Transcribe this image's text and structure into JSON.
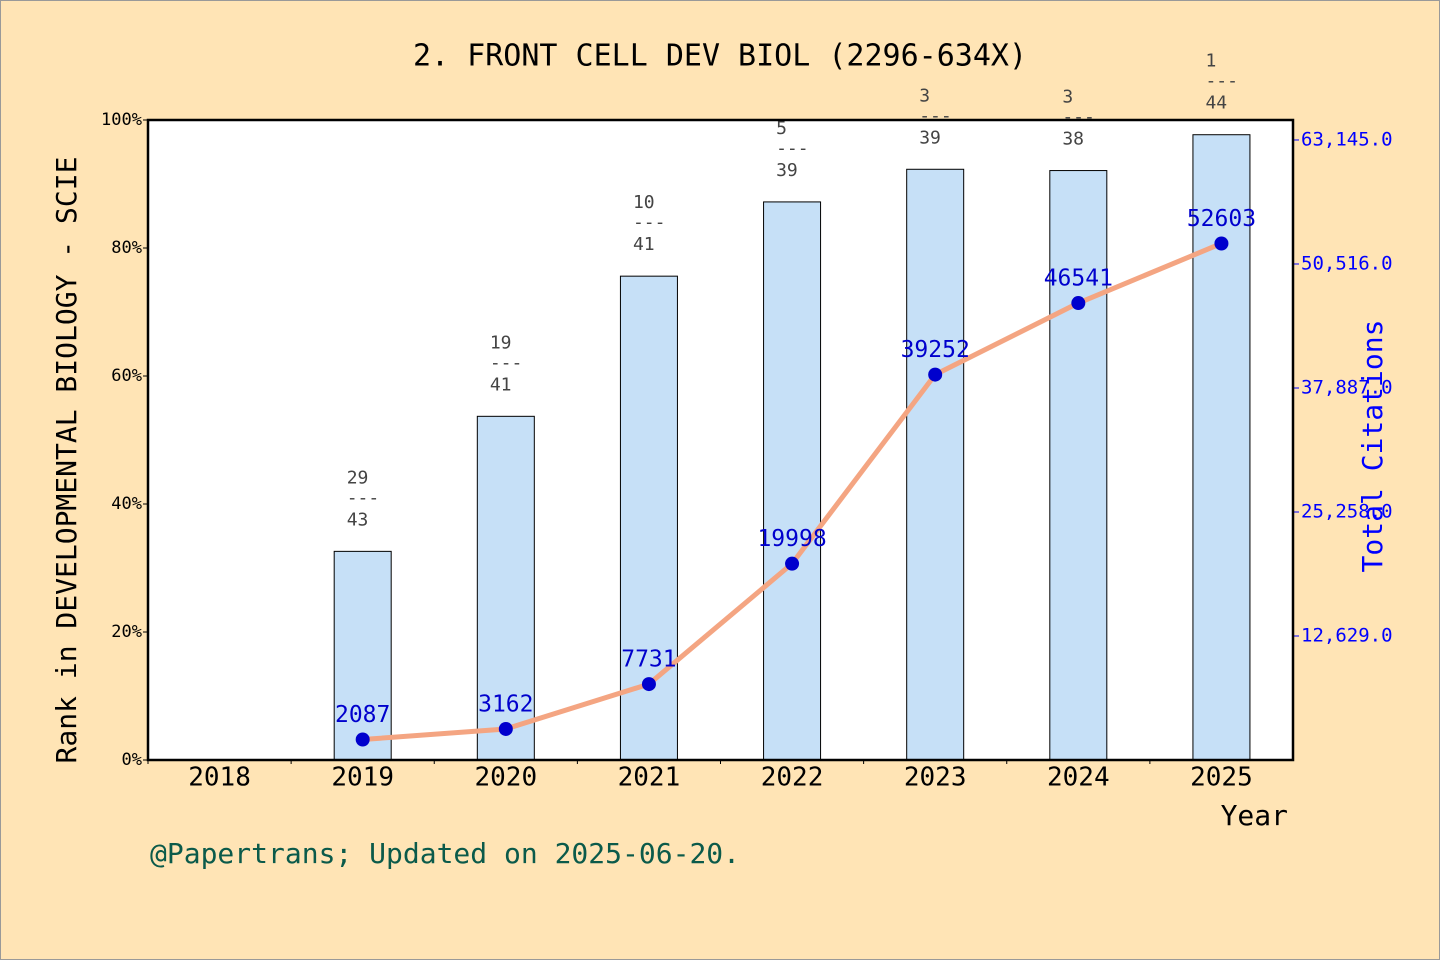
{
  "chart_data": {
    "type": "bar-line",
    "title": "2. FRONT CELL DEV BIOL (2296-634X)",
    "y_label": "Rank in DEVELOPMENTAL BIOLOGY - SCIE",
    "y2_label": "Total Citations",
    "x_label": "Year",
    "footer": "@Papertrans; Updated on 2025-06-20.",
    "categories": [
      "2018",
      "2019",
      "2020",
      "2021",
      "2022",
      "2023",
      "2024",
      "2025"
    ],
    "series": [
      {
        "name": "Rank percentile",
        "type": "bar",
        "color": "#c6e0f7",
        "values": [
          null,
          32.6,
          53.7,
          75.6,
          87.2,
          92.3,
          92.1,
          97.7
        ],
        "rank_labels": [
          null,
          [
            "29",
            "---",
            "43"
          ],
          [
            "19",
            "---",
            "41"
          ],
          [
            "10",
            "---",
            "41"
          ],
          [
            "5",
            "---",
            "39"
          ],
          [
            "3",
            "---",
            "39"
          ],
          [
            "3",
            "---",
            "38"
          ],
          [
            "1",
            "---",
            "44"
          ]
        ]
      },
      {
        "name": "Total Citations",
        "type": "line",
        "axis": "y2",
        "color": "#f4a582",
        "marker_color": "#0000cd",
        "values": [
          null,
          2087,
          3162,
          7731,
          19998,
          39252,
          46541,
          52603
        ]
      }
    ],
    "ylim": [
      0,
      100
    ],
    "yticks": [
      {
        "value": 0,
        "label": "0%"
      },
      {
        "value": 20,
        "label": "20%"
      },
      {
        "value": 40,
        "label": "40%"
      },
      {
        "value": 60,
        "label": "60%"
      },
      {
        "value": 80,
        "label": "80%"
      },
      {
        "value": 100,
        "label": "100%"
      }
    ],
    "y2lim": [
      0,
      65180
    ],
    "y2ticks": [
      {
        "value": 12629,
        "label": "12,629.0"
      },
      {
        "value": 25258,
        "label": "25,258.0"
      },
      {
        "value": 37887,
        "label": "37,887.0"
      },
      {
        "value": 50516,
        "label": "50,516.0"
      },
      {
        "value": 63145,
        "label": "63,145.0"
      }
    ]
  }
}
